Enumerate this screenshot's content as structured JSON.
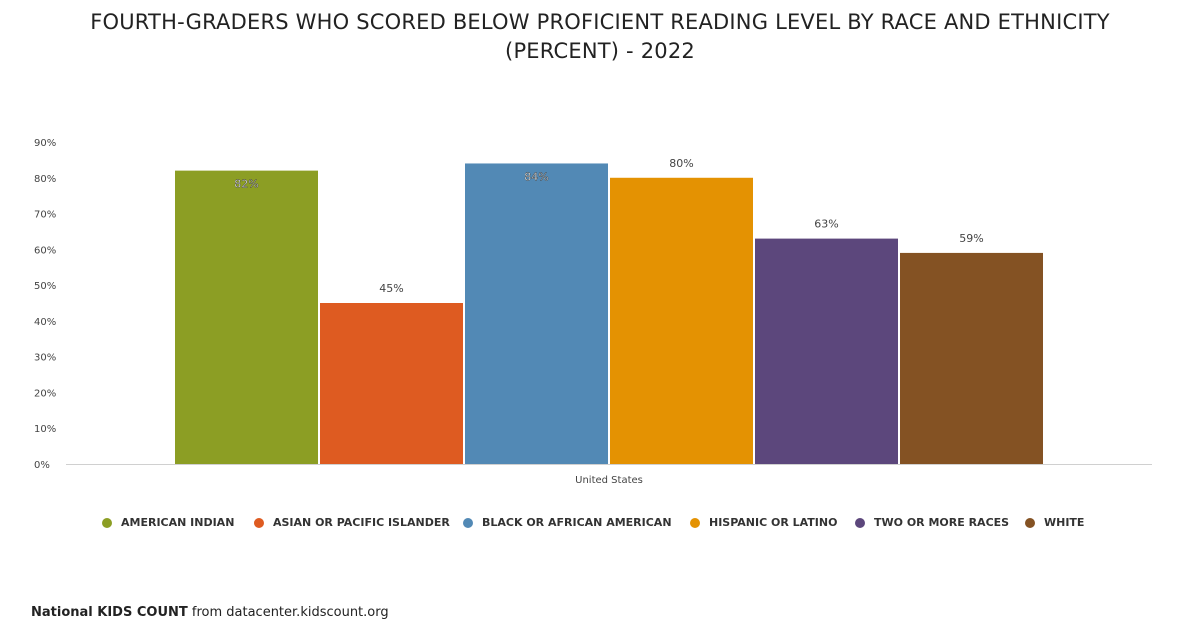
{
  "header": {
    "title_line1": "FOURTH-GRADERS WHO SCORED BELOW PROFICIENT READING LEVEL BY RACE AND ETHNICITY",
    "title_line2": "(PERCENT) - 2022"
  },
  "chart_data": {
    "type": "bar",
    "categories": [
      "United States"
    ],
    "series": [
      {
        "name": "AMERICAN INDIAN",
        "values": [
          82
        ],
        "color": "#8c9e24",
        "label": "82%"
      },
      {
        "name": "ASIAN OR PACIFIC ISLANDER",
        "values": [
          45
        ],
        "color": "#de5b21",
        "label": "45%"
      },
      {
        "name": "BLACK OR AFRICAN AMERICAN",
        "values": [
          84
        ],
        "color": "#5289b5",
        "label": "84%"
      },
      {
        "name": "HISPANIC OR LATINO",
        "values": [
          80
        ],
        "color": "#e49202",
        "label": "80%"
      },
      {
        "name": "TWO OR MORE RACES",
        "values": [
          63
        ],
        "color": "#5c477c",
        "label": "63%"
      },
      {
        "name": "WHITE",
        "values": [
          59
        ],
        "color": "#845223",
        "label": "59%"
      }
    ],
    "ylim": [
      0,
      90
    ],
    "yticks": [
      "0%",
      "10%",
      "20%",
      "30%",
      "40%",
      "50%",
      "60%",
      "70%",
      "80%",
      "90%"
    ],
    "legend_position": "bottom"
  },
  "footer": {
    "source_brand": "National KIDS COUNT",
    "source_rest": " from datacenter.kidscount.org"
  }
}
